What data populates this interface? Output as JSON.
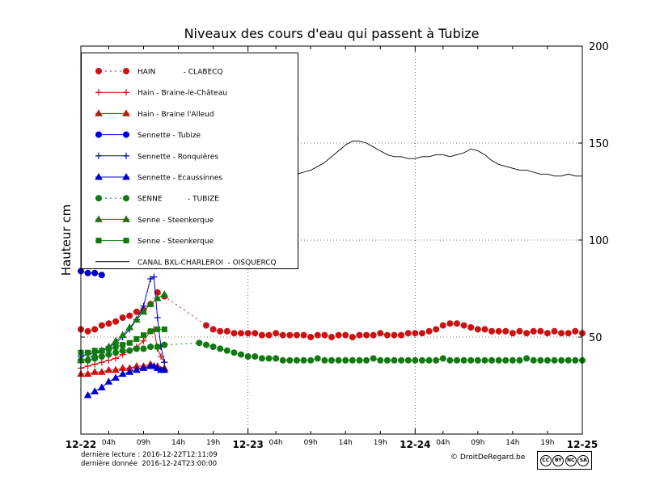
{
  "title": "Niveaux des cours d'eau qui passent à Tubize",
  "ylabel": "Hauteur cm",
  "footer": {
    "line1": "dernière lecture : 2016-12-22T12:11:09",
    "line2": "dernière donnée  2016-12-24T23:00:00",
    "copyright": "© DroitDeRegard.be",
    "badge": [
      "CC",
      "BY",
      "NC",
      "SA"
    ]
  },
  "chart_data": {
    "type": "line",
    "title": "Niveaux des cours d'eau qui passent à Tubize",
    "ylabel": "Hauteur cm",
    "x_unit": "hours since 2016-12-22 00:00",
    "xlim": [
      0,
      72
    ],
    "ylim": [
      0,
      200
    ],
    "grid": true,
    "legend_position": "upper-left",
    "xticks_major": [
      [
        0,
        "12-22"
      ],
      [
        24,
        "12-23"
      ],
      [
        48,
        "12-24"
      ],
      [
        72,
        "12-25"
      ]
    ],
    "xticks_minor": [
      [
        4,
        "04h"
      ],
      [
        9,
        "09h"
      ],
      [
        14,
        "14h"
      ],
      [
        19,
        "19h"
      ],
      [
        28,
        "04h"
      ],
      [
        33,
        "09h"
      ],
      [
        38,
        "14h"
      ],
      [
        43,
        "19h"
      ],
      [
        52,
        "04h"
      ],
      [
        57,
        "09h"
      ],
      [
        62,
        "14h"
      ],
      [
        67,
        "19h"
      ]
    ],
    "yticks": [
      [
        50,
        "50"
      ],
      [
        100,
        "100"
      ],
      [
        150,
        "150"
      ],
      [
        200,
        "200"
      ]
    ],
    "series": [
      {
        "id": "hain-clabecq",
        "label": "HAIN            - CLABECQ",
        "color": "#cc1111",
        "marker": "circle",
        "linestyle": "dotted",
        "points": [
          [
            0,
            54
          ],
          [
            1,
            53
          ],
          [
            2,
            54
          ],
          [
            3,
            56
          ],
          [
            4,
            57
          ],
          [
            5,
            58
          ],
          [
            6,
            60
          ],
          [
            7,
            61
          ],
          [
            8,
            63
          ],
          [
            9,
            64
          ],
          [
            10,
            67
          ],
          [
            11,
            73
          ],
          [
            12,
            71
          ],
          [
            18,
            56
          ],
          [
            19,
            54
          ],
          [
            20,
            53
          ],
          [
            21,
            53
          ],
          [
            22,
            52
          ],
          [
            23,
            52
          ],
          [
            24,
            52
          ],
          [
            25,
            52
          ],
          [
            26,
            51
          ],
          [
            27,
            51
          ],
          [
            28,
            52
          ],
          [
            29,
            51
          ],
          [
            30,
            51
          ],
          [
            31,
            51
          ],
          [
            32,
            51
          ],
          [
            33,
            50
          ],
          [
            34,
            51
          ],
          [
            35,
            51
          ],
          [
            36,
            50
          ],
          [
            37,
            51
          ],
          [
            38,
            51
          ],
          [
            39,
            50
          ],
          [
            40,
            51
          ],
          [
            41,
            51
          ],
          [
            42,
            51
          ],
          [
            43,
            52
          ],
          [
            44,
            51
          ],
          [
            45,
            51
          ],
          [
            46,
            51
          ],
          [
            47,
            52
          ],
          [
            48,
            52
          ],
          [
            49,
            52
          ],
          [
            50,
            53
          ],
          [
            51,
            54
          ],
          [
            52,
            56
          ],
          [
            53,
            57
          ],
          [
            54,
            57
          ],
          [
            55,
            56
          ],
          [
            56,
            55
          ],
          [
            57,
            54
          ],
          [
            58,
            54
          ],
          [
            59,
            53
          ],
          [
            60,
            53
          ],
          [
            61,
            53
          ],
          [
            62,
            52
          ],
          [
            63,
            53
          ],
          [
            64,
            52
          ],
          [
            65,
            53
          ],
          [
            66,
            53
          ],
          [
            67,
            52
          ],
          [
            68,
            53
          ],
          [
            69,
            52
          ],
          [
            70,
            52
          ],
          [
            71,
            53
          ],
          [
            72,
            52
          ]
        ]
      },
      {
        "id": "hain-braine-le-chateau",
        "label": "Hain - Braine-le-Château",
        "color": "#cc1111",
        "marker": "plus",
        "linestyle": "solid",
        "points": [
          [
            0,
            34
          ],
          [
            1,
            35
          ],
          [
            2,
            36
          ],
          [
            3,
            37
          ],
          [
            4,
            38
          ],
          [
            5,
            39
          ],
          [
            6,
            41
          ],
          [
            7,
            43
          ],
          [
            8,
            45
          ],
          [
            9,
            48
          ],
          [
            10,
            53
          ],
          [
            10.5,
            54
          ],
          [
            11,
            44
          ],
          [
            11.5,
            40
          ],
          [
            12,
            37
          ]
        ]
      },
      {
        "id": "hain-braine-alleud",
        "label": "Hain - Braine l'Alleud",
        "color": "#cc1111",
        "marker": "triangle",
        "linestyle": "solid",
        "points": [
          [
            0,
            31
          ],
          [
            1,
            31
          ],
          [
            2,
            32
          ],
          [
            3,
            32
          ],
          [
            4,
            33
          ],
          [
            5,
            33
          ],
          [
            6,
            34
          ],
          [
            7,
            34
          ],
          [
            8,
            35
          ],
          [
            9,
            35
          ],
          [
            10,
            36
          ],
          [
            11,
            35
          ],
          [
            12,
            34
          ]
        ]
      },
      {
        "id": "sennette-tubize",
        "label": "Sennette - Tubize",
        "color": "#0000cc",
        "marker": "circle",
        "linestyle": "solid",
        "points": [
          [
            0,
            84
          ],
          [
            1,
            83
          ],
          [
            2,
            83
          ],
          [
            3,
            82
          ]
        ]
      },
      {
        "id": "sennette-ronquieres",
        "label": "Sennette - Ronquières",
        "color": "#0000cc",
        "marker": "plus",
        "linestyle": "solid",
        "points": [
          [
            0,
            40
          ],
          [
            1,
            41
          ],
          [
            2,
            42
          ],
          [
            3,
            43
          ],
          [
            4,
            45
          ],
          [
            5,
            47
          ],
          [
            6,
            50
          ],
          [
            7,
            54
          ],
          [
            8,
            59
          ],
          [
            9,
            66
          ],
          [
            10,
            80
          ],
          [
            10.5,
            81
          ],
          [
            11,
            60
          ],
          [
            11.5,
            45
          ],
          [
            12,
            37
          ]
        ]
      },
      {
        "id": "sennette-ecaussinnes",
        "label": "Sennette - Ecaussinnes",
        "color": "#0000cc",
        "marker": "triangle",
        "linestyle": "solid",
        "points": [
          [
            1,
            20
          ],
          [
            2,
            22
          ],
          [
            3,
            24
          ],
          [
            4,
            27
          ],
          [
            5,
            29
          ],
          [
            6,
            31
          ],
          [
            7,
            32
          ],
          [
            8,
            33
          ],
          [
            9,
            34
          ],
          [
            10,
            35
          ],
          [
            10.5,
            35
          ],
          [
            11,
            34
          ],
          [
            11.5,
            33
          ],
          [
            12,
            33
          ]
        ]
      },
      {
        "id": "senne-tubize",
        "label": "SENNE           - TUBIZE",
        "color": "#117a11",
        "marker": "circle",
        "linestyle": "dotted",
        "points": [
          [
            0,
            38
          ],
          [
            1,
            38
          ],
          [
            2,
            39
          ],
          [
            3,
            40
          ],
          [
            4,
            41
          ],
          [
            5,
            42
          ],
          [
            6,
            43
          ],
          [
            7,
            43
          ],
          [
            8,
            44
          ],
          [
            9,
            44
          ],
          [
            10,
            45
          ],
          [
            11,
            45
          ],
          [
            12,
            46
          ],
          [
            17,
            47
          ],
          [
            18,
            46
          ],
          [
            19,
            45
          ],
          [
            20,
            44
          ],
          [
            21,
            43
          ],
          [
            22,
            42
          ],
          [
            23,
            41
          ],
          [
            24,
            40
          ],
          [
            25,
            40
          ],
          [
            26,
            39
          ],
          [
            27,
            39
          ],
          [
            28,
            39
          ],
          [
            29,
            38
          ],
          [
            30,
            38
          ],
          [
            31,
            38
          ],
          [
            32,
            38
          ],
          [
            33,
            38
          ],
          [
            34,
            39
          ],
          [
            35,
            38
          ],
          [
            36,
            38
          ],
          [
            37,
            38
          ],
          [
            38,
            38
          ],
          [
            39,
            38
          ],
          [
            40,
            38
          ],
          [
            41,
            38
          ],
          [
            42,
            39
          ],
          [
            43,
            38
          ],
          [
            44,
            38
          ],
          [
            45,
            38
          ],
          [
            46,
            38
          ],
          [
            47,
            38
          ],
          [
            48,
            38
          ],
          [
            49,
            38
          ],
          [
            50,
            38
          ],
          [
            51,
            38
          ],
          [
            52,
            39
          ],
          [
            53,
            38
          ],
          [
            54,
            38
          ],
          [
            55,
            38
          ],
          [
            56,
            38
          ],
          [
            57,
            38
          ],
          [
            58,
            38
          ],
          [
            59,
            38
          ],
          [
            60,
            38
          ],
          [
            61,
            38
          ],
          [
            62,
            38
          ],
          [
            63,
            38
          ],
          [
            64,
            39
          ],
          [
            65,
            38
          ],
          [
            66,
            38
          ],
          [
            67,
            38
          ],
          [
            68,
            38
          ],
          [
            69,
            38
          ],
          [
            70,
            38
          ],
          [
            71,
            38
          ],
          [
            72,
            38
          ]
        ]
      },
      {
        "id": "senne-steenkerque-a",
        "label": "Senne - Steenkerque",
        "color": "#117a11",
        "marker": "triangle",
        "linestyle": "solid",
        "points": [
          [
            0,
            38
          ],
          [
            1,
            39
          ],
          [
            2,
            41
          ],
          [
            3,
            43
          ],
          [
            4,
            45
          ],
          [
            5,
            48
          ],
          [
            6,
            51
          ],
          [
            7,
            55
          ],
          [
            8,
            59
          ],
          [
            9,
            63
          ],
          [
            10,
            67
          ],
          [
            11,
            70
          ],
          [
            12,
            72
          ]
        ]
      },
      {
        "id": "senne-steenkerque-b",
        "label": "Senne - Steenkerque",
        "color": "#117a11",
        "marker": "square",
        "linestyle": "solid",
        "points": [
          [
            0,
            42
          ],
          [
            1,
            42
          ],
          [
            2,
            43
          ],
          [
            3,
            43
          ],
          [
            4,
            44
          ],
          [
            5,
            45
          ],
          [
            6,
            46
          ],
          [
            7,
            47
          ],
          [
            8,
            49
          ],
          [
            9,
            51
          ],
          [
            10,
            53
          ],
          [
            11,
            54
          ],
          [
            12,
            54
          ]
        ]
      },
      {
        "id": "canal-bxl-charleroi",
        "label": "CANAL BXL-CHARLEROI  - OISQUERCQ",
        "color": "#000000",
        "marker": "none",
        "linestyle": "solid",
        "points": [
          [
            0,
            140
          ],
          [
            1,
            139
          ],
          [
            2,
            138
          ],
          [
            30,
            133
          ],
          [
            31,
            134
          ],
          [
            32,
            135
          ],
          [
            33,
            136
          ],
          [
            34,
            138
          ],
          [
            35,
            140
          ],
          [
            36,
            143
          ],
          [
            37,
            146
          ],
          [
            38,
            149
          ],
          [
            39,
            151
          ],
          [
            40,
            151
          ],
          [
            41,
            150
          ],
          [
            42,
            148
          ],
          [
            43,
            146
          ],
          [
            44,
            144
          ],
          [
            45,
            143
          ],
          [
            46,
            143
          ],
          [
            47,
            142
          ],
          [
            48,
            142
          ],
          [
            49,
            143
          ],
          [
            50,
            143
          ],
          [
            51,
            144
          ],
          [
            52,
            144
          ],
          [
            53,
            143
          ],
          [
            54,
            144
          ],
          [
            55,
            145
          ],
          [
            56,
            147
          ],
          [
            57,
            146
          ],
          [
            58,
            144
          ],
          [
            59,
            141
          ],
          [
            60,
            139
          ],
          [
            61,
            138
          ],
          [
            62,
            137
          ],
          [
            63,
            136
          ],
          [
            64,
            136
          ],
          [
            65,
            135
          ],
          [
            66,
            134
          ],
          [
            67,
            134
          ],
          [
            68,
            133
          ],
          [
            69,
            133
          ],
          [
            70,
            134
          ],
          [
            71,
            133
          ],
          [
            72,
            133
          ]
        ]
      }
    ]
  }
}
